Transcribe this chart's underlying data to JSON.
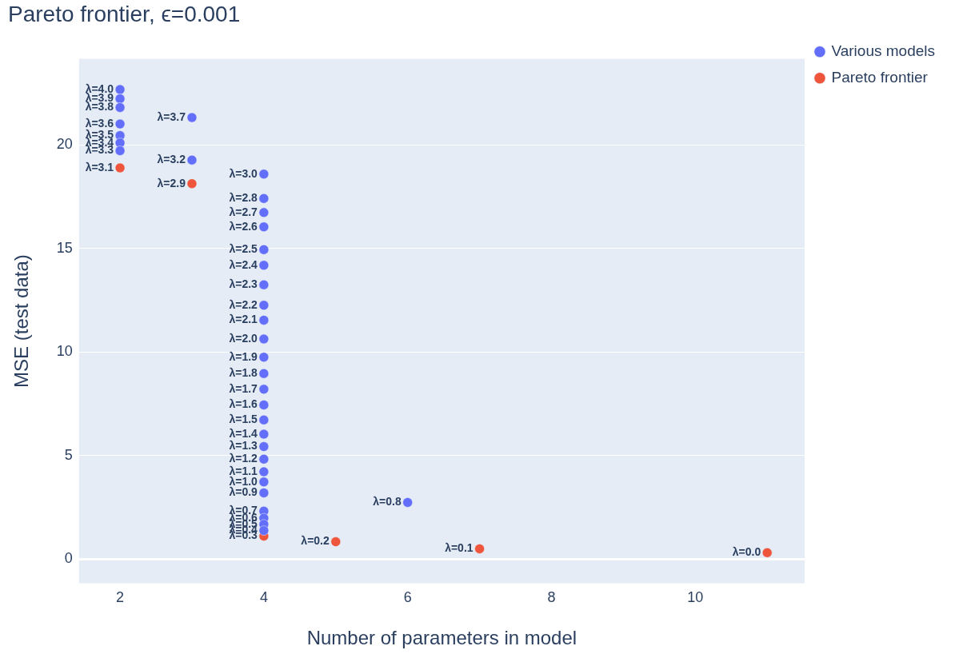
{
  "chart_data": {
    "type": "scatter",
    "title": "Pareto frontier, ϵ=0.001",
    "xlabel": "Number of parameters in model",
    "ylabel": "MSE (test data)",
    "xlim": [
      1.43,
      11.52
    ],
    "ylim": [
      -1.18,
      24.17
    ],
    "xticks": [
      2,
      4,
      6,
      8,
      10
    ],
    "yticks": [
      0,
      5,
      10,
      15,
      20
    ],
    "grid": "y",
    "legend": "top right",
    "marker": "circle",
    "series": [
      {
        "name": "Various models",
        "color": "#636efa",
        "x": [
          2,
          2,
          2,
          2,
          2,
          2,
          2,
          3,
          3,
          4,
          4,
          4,
          4,
          4,
          4,
          4,
          4,
          4,
          4,
          4,
          4,
          4,
          4,
          4,
          4,
          4,
          4,
          4,
          4,
          4,
          4,
          4,
          4,
          4,
          6
        ],
        "values": [
          22.69,
          22.24,
          21.82,
          21.02,
          20.46,
          20.11,
          19.73,
          21.33,
          19.28,
          18.6,
          17.42,
          16.74,
          16.05,
          14.95,
          14.19,
          13.25,
          12.26,
          11.54,
          10.63,
          9.75,
          8.96,
          8.2,
          7.44,
          6.72,
          6.03,
          5.43,
          4.82,
          4.21,
          3.72,
          3.19,
          2.31,
          1.97,
          1.67,
          1.37,
          2.73
        ]
      },
      {
        "name": "Pareto frontier",
        "color": "#ef553b",
        "x": [
          2,
          3,
          4,
          5,
          7,
          11
        ],
        "values": [
          18.9,
          18.14,
          1.1,
          0.83,
          0.49,
          0.3
        ]
      }
    ],
    "annotations": [
      {
        "text": "λ=4.0",
        "x": 2,
        "y": 22.69
      },
      {
        "text": "λ=3.9",
        "x": 2,
        "y": 22.24
      },
      {
        "text": "λ=3.8",
        "x": 2,
        "y": 21.82
      },
      {
        "text": "λ=3.6",
        "x": 2,
        "y": 21.02
      },
      {
        "text": "λ=3.5",
        "x": 2,
        "y": 20.46
      },
      {
        "text": "λ=3.4",
        "x": 2,
        "y": 20.11
      },
      {
        "text": "λ=3.3",
        "x": 2,
        "y": 19.73
      },
      {
        "text": "λ=3.1",
        "x": 2,
        "y": 18.9
      },
      {
        "text": "λ=3.7",
        "x": 3,
        "y": 21.33
      },
      {
        "text": "λ=3.2",
        "x": 3,
        "y": 19.28
      },
      {
        "text": "λ=2.9",
        "x": 3,
        "y": 18.14
      },
      {
        "text": "λ=3.0",
        "x": 4,
        "y": 18.6
      },
      {
        "text": "λ=2.8",
        "x": 4,
        "y": 17.42
      },
      {
        "text": "λ=2.7",
        "x": 4,
        "y": 16.74
      },
      {
        "text": "λ=2.6",
        "x": 4,
        "y": 16.05
      },
      {
        "text": "λ=2.5",
        "x": 4,
        "y": 14.95
      },
      {
        "text": "λ=2.4",
        "x": 4,
        "y": 14.19
      },
      {
        "text": "λ=2.3",
        "x": 4,
        "y": 13.25
      },
      {
        "text": "λ=2.2",
        "x": 4,
        "y": 12.26
      },
      {
        "text": "λ=2.1",
        "x": 4,
        "y": 11.54
      },
      {
        "text": "λ=2.0",
        "x": 4,
        "y": 10.63
      },
      {
        "text": "λ=1.9",
        "x": 4,
        "y": 9.75
      },
      {
        "text": "λ=1.8",
        "x": 4,
        "y": 8.96
      },
      {
        "text": "λ=1.7",
        "x": 4,
        "y": 8.2
      },
      {
        "text": "λ=1.6",
        "x": 4,
        "y": 7.44
      },
      {
        "text": "λ=1.5",
        "x": 4,
        "y": 6.72
      },
      {
        "text": "λ=1.4",
        "x": 4,
        "y": 6.03
      },
      {
        "text": "λ=1.3",
        "x": 4,
        "y": 5.43
      },
      {
        "text": "λ=1.2",
        "x": 4,
        "y": 4.82
      },
      {
        "text": "λ=1.1",
        "x": 4,
        "y": 4.21
      },
      {
        "text": "λ=1.0",
        "x": 4,
        "y": 3.72
      },
      {
        "text": "λ=0.9",
        "x": 4,
        "y": 3.19
      },
      {
        "text": "λ=0.7",
        "x": 4,
        "y": 2.31
      },
      {
        "text": "λ=0.6",
        "x": 4,
        "y": 1.97
      },
      {
        "text": "λ=0.5",
        "x": 4,
        "y": 1.67
      },
      {
        "text": "λ=0.4",
        "x": 4,
        "y": 1.37
      },
      {
        "text": "λ=0.3",
        "x": 4,
        "y": 1.1
      },
      {
        "text": "λ=0.8",
        "x": 6,
        "y": 2.73
      },
      {
        "text": "λ=0.2",
        "x": 5,
        "y": 0.83
      },
      {
        "text": "λ=0.1",
        "x": 7,
        "y": 0.49
      },
      {
        "text": "λ=0.0",
        "x": 11,
        "y": 0.3
      }
    ]
  }
}
